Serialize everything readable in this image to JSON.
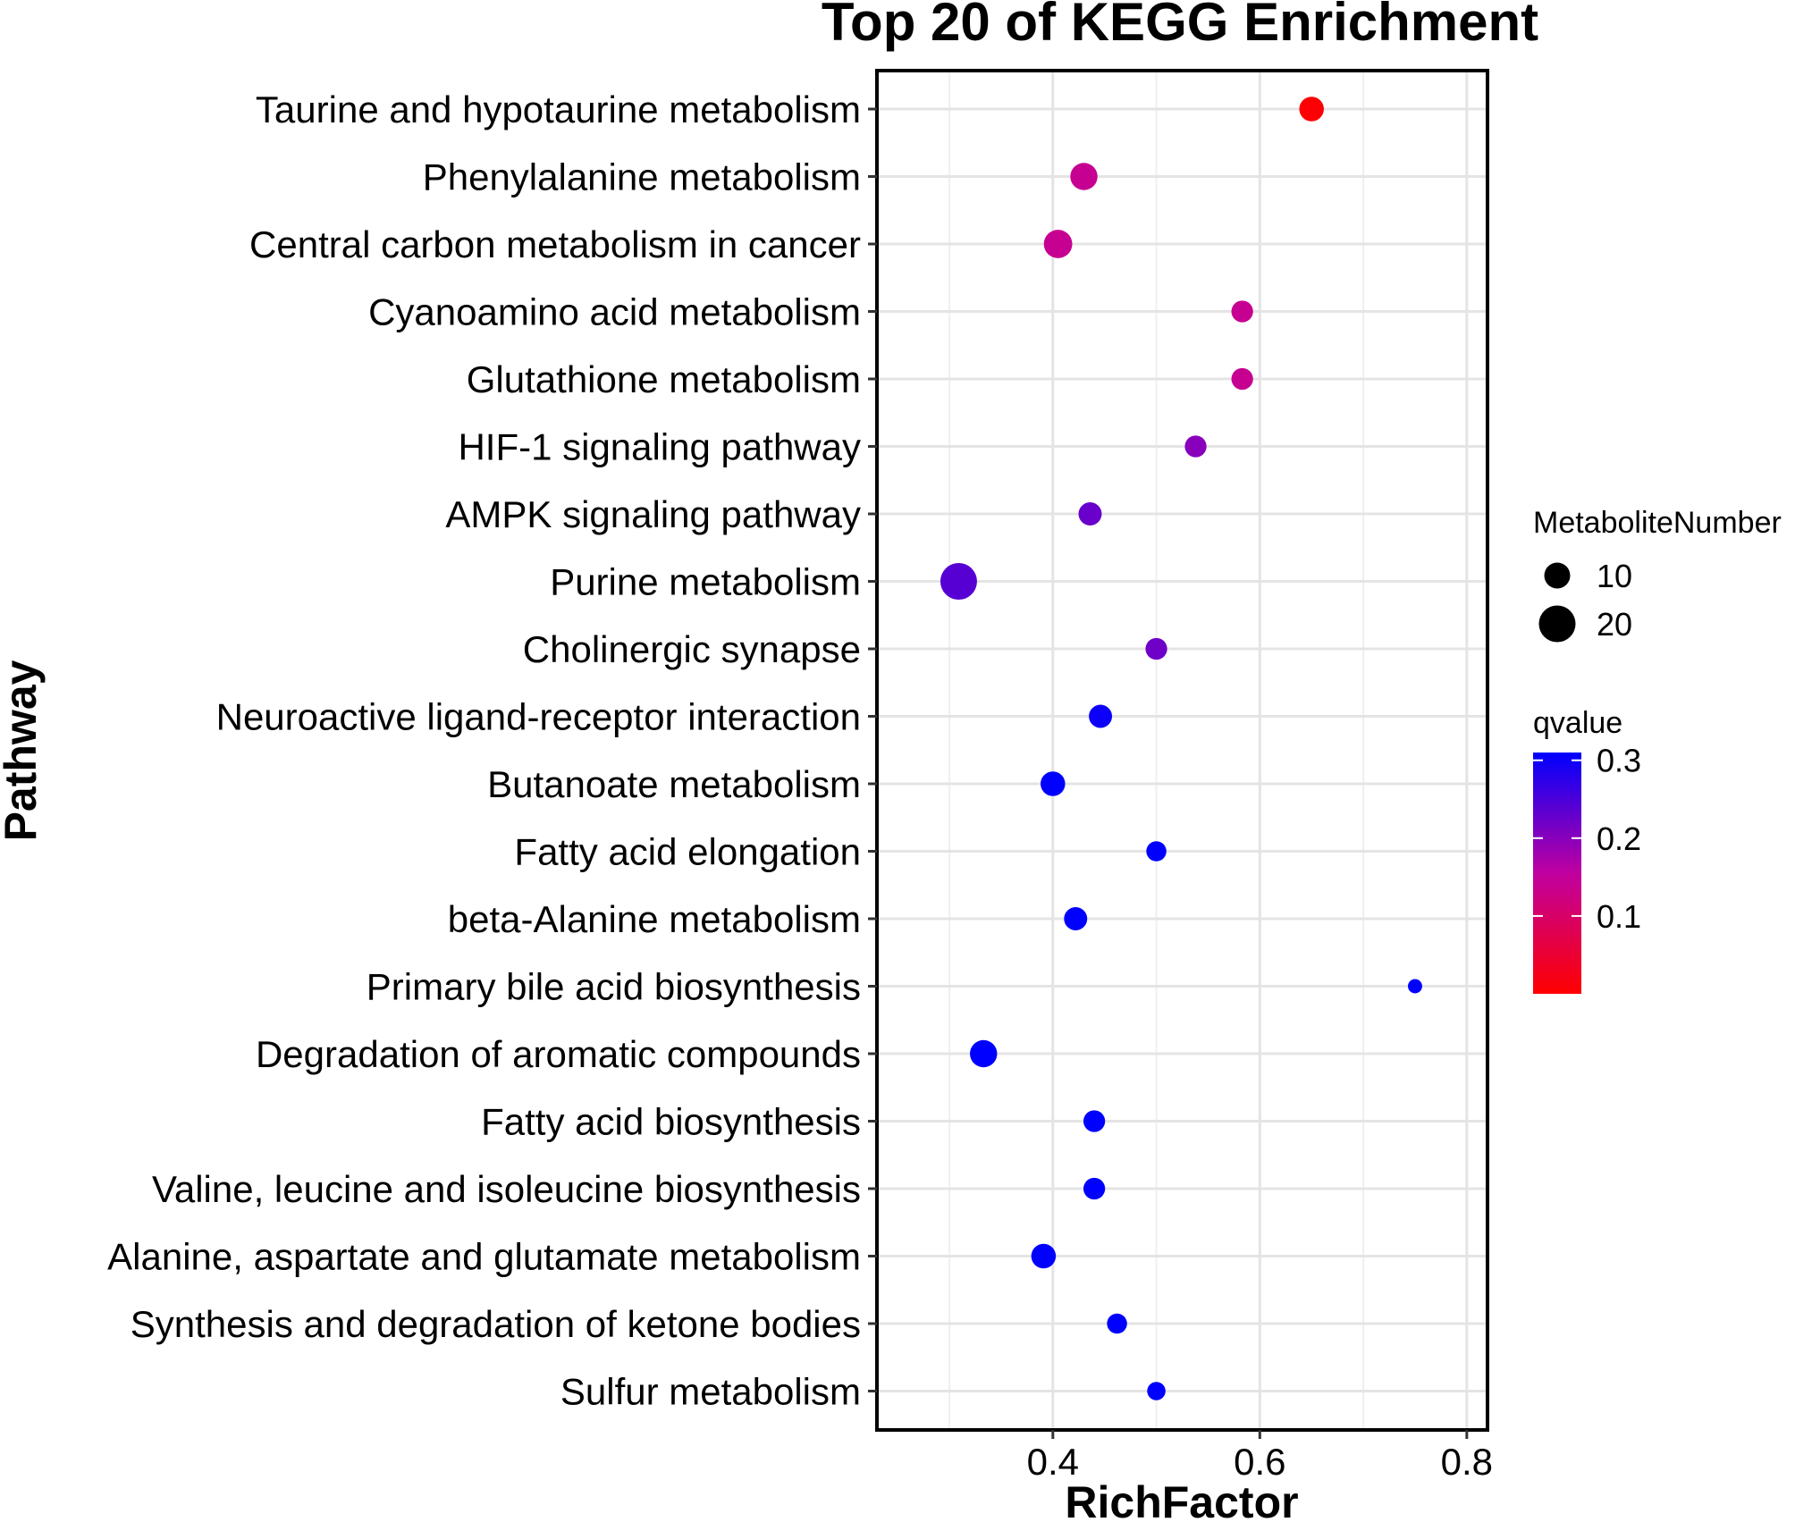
{
  "chart_data": {
    "type": "scatter",
    "title": "Top 20 of KEGG Enrichment",
    "xlabel": "RichFactor",
    "ylabel": "Pathway",
    "xlim": [
      0.23,
      0.82
    ],
    "xticks": [
      0.4,
      0.6,
      0.8
    ],
    "xtick_labels": [
      "0.4",
      "0.6",
      "0.8"
    ],
    "grid": true,
    "categories": [
      "Taurine and hypotaurine metabolism",
      "Phenylalanine metabolism",
      "Central carbon metabolism in cancer",
      "Cyanoamino acid metabolism",
      "Glutathione metabolism",
      "HIF-1 signaling pathway",
      "AMPK signaling pathway",
      "Purine metabolism",
      "Cholinergic synapse",
      "Neuroactive ligand-receptor interaction",
      "Butanoate metabolism",
      "Fatty acid elongation",
      "beta-Alanine metabolism",
      "Primary bile acid biosynthesis",
      "Degradation of aromatic compounds",
      "Fatty acid biosynthesis",
      "Valine, leucine and isoleucine biosynthesis",
      "Alanine, aspartate and glutamate metabolism",
      "Synthesis and degradation of ketone bodies",
      "Sulfur metabolism"
    ],
    "rich_factor": [
      0.65,
      0.43,
      0.405,
      0.583,
      0.583,
      0.538,
      0.436,
      0.309,
      0.5,
      0.446,
      0.4,
      0.5,
      0.422,
      0.75,
      0.333,
      0.44,
      0.44,
      0.391,
      0.462,
      0.5
    ],
    "metabolite_number": [
      9,
      11,
      12,
      7,
      7,
      7,
      8,
      20,
      7,
      8,
      9,
      6,
      8,
      3,
      11,
      7,
      7,
      9,
      6,
      5
    ],
    "qvalue": [
      0.005,
      0.14,
      0.14,
      0.14,
      0.14,
      0.2,
      0.225,
      0.24,
      0.22,
      0.3,
      0.31,
      0.31,
      0.31,
      0.31,
      0.31,
      0.31,
      0.31,
      0.31,
      0.31,
      0.31
    ],
    "size_legend": {
      "title": "MetaboliteNumber",
      "values": [
        10,
        20
      ],
      "labels": [
        "10",
        "20"
      ]
    },
    "color_legend": {
      "title": "qvalue",
      "range": [
        0,
        0.31
      ],
      "ticks": [
        0.1,
        0.2,
        0.3
      ],
      "tick_labels": [
        "0.1",
        "0.2",
        "0.3"
      ],
      "low_color": "#ff0000",
      "high_color": "#0000ff"
    }
  }
}
